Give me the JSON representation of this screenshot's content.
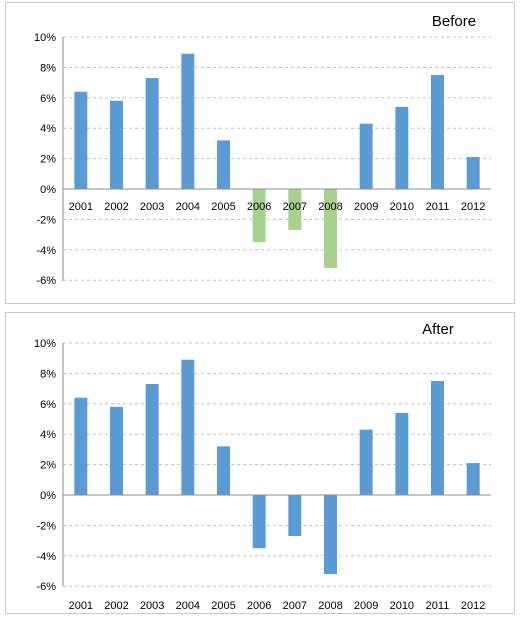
{
  "chart_data": [
    {
      "type": "bar",
      "title": "Before",
      "categories": [
        "2001",
        "2002",
        "2003",
        "2004",
        "2005",
        "2006",
        "2007",
        "2008",
        "2009",
        "2010",
        "2011",
        "2012"
      ],
      "values": [
        6.4,
        5.8,
        7.3,
        8.9,
        3.2,
        -3.5,
        -2.7,
        -5.2,
        4.3,
        5.4,
        7.5,
        2.1
      ],
      "ylim": [
        -6,
        10
      ],
      "yticks": [
        "10%",
        "8%",
        "6%",
        "4%",
        "2%",
        "0%",
        "-2%",
        "-4%",
        "-6%"
      ],
      "grid": true,
      "colors": {
        "positive": "#5b9bd5",
        "negative": "#a9d18e"
      },
      "xlabel": "",
      "ylabel": ""
    },
    {
      "type": "bar",
      "title": "After",
      "categories": [
        "2001",
        "2002",
        "2003",
        "2004",
        "2005",
        "2006",
        "2007",
        "2008",
        "2009",
        "2010",
        "2011",
        "2012"
      ],
      "values": [
        6.4,
        5.8,
        7.3,
        8.9,
        3.2,
        -3.5,
        -2.7,
        -5.2,
        4.3,
        5.4,
        7.5,
        2.1
      ],
      "ylim": [
        -6,
        10
      ],
      "yticks": [
        "10%",
        "8%",
        "6%",
        "4%",
        "2%",
        "0%",
        "-2%",
        "-4%",
        "-6%"
      ],
      "grid": true,
      "colors": {
        "positive": "#5b9bd5",
        "negative": "#5b9bd5"
      },
      "xlabel": "",
      "ylabel": ""
    }
  ]
}
